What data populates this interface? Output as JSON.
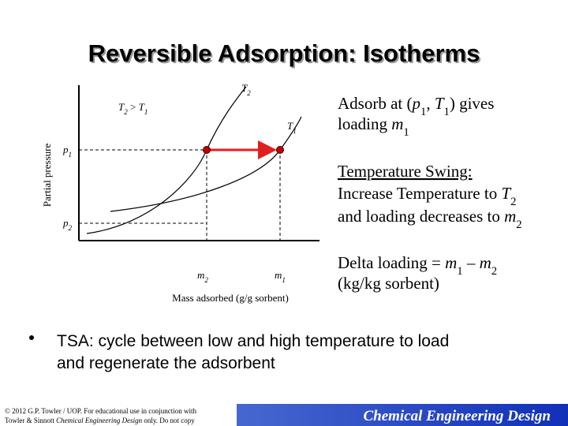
{
  "title": "Reversible Adsorption: Isotherms",
  "diagram": {
    "y_axis_label": "Partial pressure",
    "x_axis_label": "Mass adsorbed (g/g sorbent)",
    "labels": [
      [
        {
          "text": "T",
          "style": "italic"
        },
        {
          "text": "2",
          "style": "italic sub"
        }
      ],
      [
        {
          "text": "T",
          "style": "italic"
        },
        {
          "text": "2",
          "style": "italic sub"
        },
        {
          "text": " > "
        },
        {
          "text": "T",
          "style": "italic"
        },
        {
          "text": "1",
          "style": "italic sub"
        }
      ],
      [
        {
          "text": "T",
          "style": "italic"
        },
        {
          "text": "1",
          "style": "italic sub"
        }
      ],
      [
        {
          "text": "p",
          "style": "italic"
        },
        {
          "text": "1",
          "style": "italic sub"
        }
      ],
      [
        {
          "text": "p",
          "style": "italic"
        },
        {
          "text": "2",
          "style": "italic sub"
        }
      ],
      [
        {
          "text": "m",
          "style": "italic"
        },
        {
          "text": "2",
          "style": "italic sub"
        }
      ],
      [
        {
          "text": "m",
          "style": "italic"
        },
        {
          "text": "1",
          "style": "italic sub"
        }
      ]
    ]
  },
  "notes": [
    [
      {
        "text": "Adsorb at ("
      },
      {
        "text": "p",
        "style": "italic"
      },
      {
        "text": "1",
        "style": "sub"
      },
      {
        "text": ", "
      },
      {
        "text": "T",
        "style": "italic"
      },
      {
        "text": "1",
        "style": "sub"
      },
      {
        "text": ") gives"
      }
    ],
    [
      {
        "text": "loading "
      },
      {
        "text": "m",
        "style": "italic"
      },
      {
        "text": "1",
        "style": "sub"
      }
    ],
    [
      {
        "text": "Temperature Swing:",
        "style": "underline"
      }
    ],
    [
      {
        "text": "Increase Temperature to "
      },
      {
        "text": "T",
        "style": "italic"
      },
      {
        "text": "2",
        "style": "sub"
      }
    ],
    [
      {
        "text": "and loading decreases to "
      },
      {
        "text": "m",
        "style": "italic"
      },
      {
        "text": "2",
        "style": "sub"
      }
    ],
    [
      {
        "text": "Delta loading = "
      },
      {
        "text": "m",
        "style": "italic"
      },
      {
        "text": "1",
        "style": "sub"
      },
      {
        "text": " – "
      },
      {
        "text": "m",
        "style": "italic"
      },
      {
        "text": "2",
        "style": "sub"
      }
    ],
    [
      {
        "text": "(kg/kg sorbent)"
      }
    ]
  ],
  "bullet": [
    "TSA: cycle between low and high temperature to load",
    "and regenerate the adsorbent"
  ],
  "footer": {
    "copyright": [
      [
        {
          "text": "© 2012 G.P. Towler / UOP. For educational use in conjunction with"
        }
      ],
      [
        {
          "text": "Towler & Sinnott "
        },
        {
          "text": "Chemical Engineering Design",
          "style": "italic"
        },
        {
          "text": " only. Do not copy"
        }
      ]
    ],
    "brand": "Chemical Engineering Design"
  }
}
